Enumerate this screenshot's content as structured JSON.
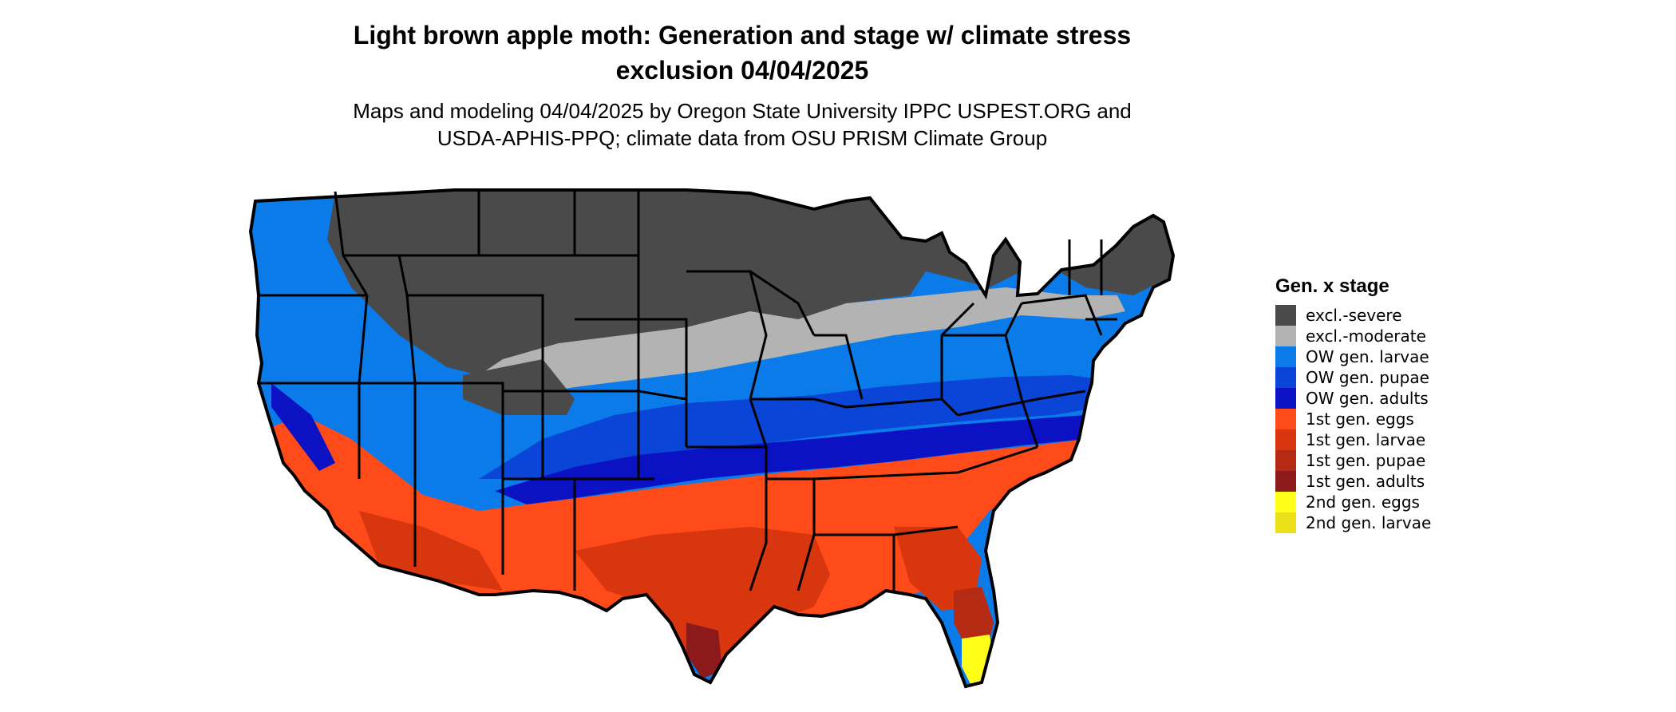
{
  "title_line1": "Light brown apple moth: Generation and stage w/ climate stress",
  "title_line2": "exclusion 04/04/2025",
  "subtitle_line1": "Maps and modeling 04/04/2025 by Oregon State University IPPC USPEST.ORG and",
  "subtitle_line2": "USDA-APHIS-PPQ; climate data from OSU PRISM Climate Group",
  "legend": {
    "title": "Gen. x stage",
    "items": [
      {
        "label": "excl.-severe",
        "color": "#4a4a4a"
      },
      {
        "label": "excl.-moderate",
        "color": "#b3b3b3"
      },
      {
        "label": "OW gen. larvae",
        "color": "#0b7bea"
      },
      {
        "label": "OW gen. pupae",
        "color": "#0a45d8"
      },
      {
        "label": "OW gen. adults",
        "color": "#0a12c4"
      },
      {
        "label": "1st gen. eggs",
        "color": "#ff4a1a"
      },
      {
        "label": "1st gen. larvae",
        "color": "#d8360e"
      },
      {
        "label": "1st gen. pupae",
        "color": "#b52a12"
      },
      {
        "label": "1st gen. adults",
        "color": "#8c1a1a"
      },
      {
        "label": "2nd gen. eggs",
        "color": "#ffff1a"
      },
      {
        "label": "2nd gen. larvae",
        "color": "#ece01a"
      }
    ]
  }
}
